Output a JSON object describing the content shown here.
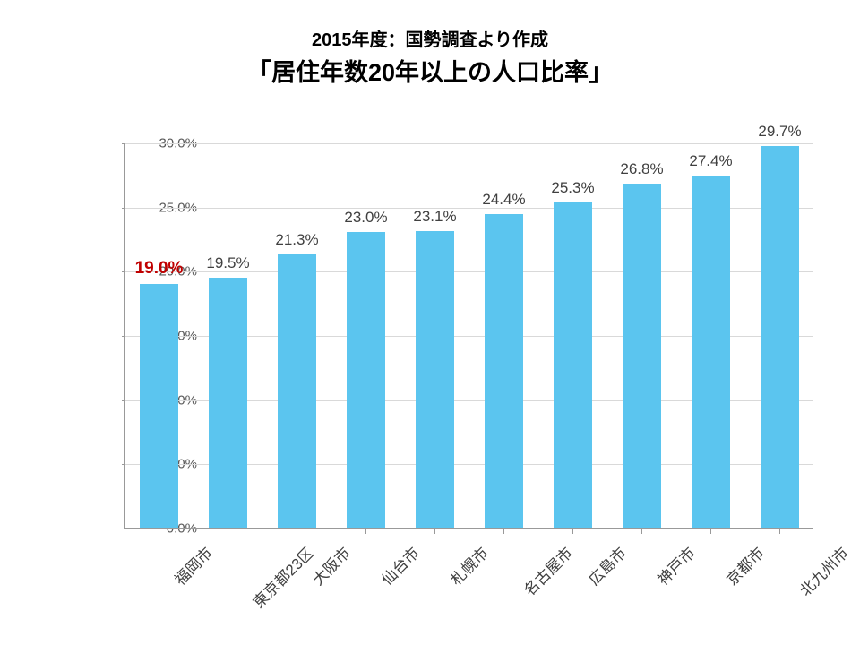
{
  "subtitle": "2015年度：国勢調査より作成",
  "title": "「居住年数20年以上の人口比率」",
  "chart": {
    "type": "bar",
    "categories": [
      "福岡市",
      "東京都23区",
      "大阪市",
      "仙台市",
      "札幌市",
      "名古屋市",
      "広島市",
      "神戸市",
      "京都市",
      "北九州市"
    ],
    "values": [
      19.0,
      19.5,
      21.3,
      23.0,
      23.1,
      24.4,
      25.3,
      26.8,
      27.4,
      29.7
    ],
    "value_labels": [
      "19.0%",
      "19.5%",
      "21.3%",
      "23.0%",
      "23.1%",
      "24.4%",
      "25.3%",
      "26.8%",
      "27.4%",
      "29.7%"
    ],
    "highlight_index": 0,
    "bar_color": "#5bc5ef",
    "ylim": [
      0,
      30
    ],
    "ytick_step": 5,
    "ytick_labels": [
      "0.0%",
      "5.0%",
      "10.0%",
      "15.0%",
      "20.0%",
      "25.0%",
      "30.0%"
    ],
    "y_label_color": "#595959",
    "x_label_color": "#404040",
    "value_label_color": "#404040",
    "highlight_color": "#c00000",
    "grid_color": "#d9d9d9",
    "axis_color": "#999999",
    "background_color": "#ffffff",
    "bar_width_ratio": 0.56,
    "title_fontsize": 27,
    "subtitle_fontsize": 20,
    "label_fontsize": 17,
    "ytick_fontsize": 15,
    "x_label_rotation": -45
  }
}
